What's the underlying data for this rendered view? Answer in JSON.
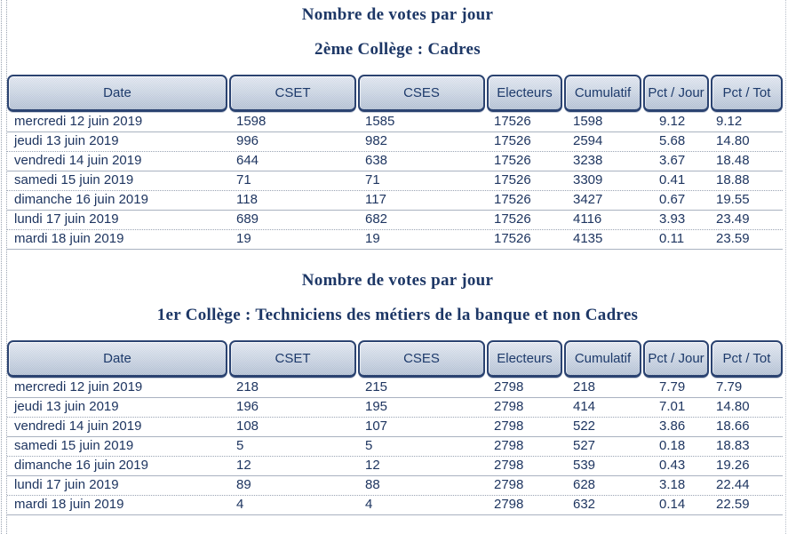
{
  "colors": {
    "navy_text": "#1d3766",
    "header_border": "#2b4371",
    "header_bg_top": "#e3e9f2",
    "header_bg_bottom": "#b4c1d4",
    "row_separator": "#a9b2c0",
    "page_bg": "#ffffff"
  },
  "sections": [
    {
      "title": "Nombre de votes par jour",
      "subtitle": "2ème Collège : Cadres",
      "columns": [
        "Date",
        "CSET",
        "CSES",
        "Electeurs",
        "Cumulatif",
        "Pct / Jour",
        "Pct / Tot"
      ],
      "rows": [
        [
          "mercredi 12 juin 2019",
          "1598",
          "1585",
          "17526",
          "1598",
          "9.12",
          "9.12"
        ],
        [
          "jeudi 13 juin 2019",
          "996",
          "982",
          "17526",
          "2594",
          "5.68",
          "14.80"
        ],
        [
          "vendredi 14 juin 2019",
          "644",
          "638",
          "17526",
          "3238",
          "3.67",
          "18.48"
        ],
        [
          "samedi 15 juin 2019",
          "71",
          "71",
          "17526",
          "3309",
          "0.41",
          "18.88"
        ],
        [
          "dimanche 16 juin 2019",
          "118",
          "117",
          "17526",
          "3427",
          "0.67",
          "19.55"
        ],
        [
          "lundi 17 juin 2019",
          "689",
          "682",
          "17526",
          "4116",
          "3.93",
          "23.49"
        ],
        [
          "mardi 18 juin 2019",
          "19",
          "19",
          "17526",
          "4135",
          "0.11",
          "23.59"
        ]
      ]
    },
    {
      "title": "Nombre de votes par jour",
      "subtitle": "1er Collège : Techniciens des métiers de la banque et non Cadres",
      "columns": [
        "Date",
        "CSET",
        "CSES",
        "Electeurs",
        "Cumulatif",
        "Pct / Jour",
        "Pct / Tot"
      ],
      "rows": [
        [
          "mercredi 12 juin 2019",
          "218",
          "215",
          "2798",
          "218",
          "7.79",
          "7.79"
        ],
        [
          "jeudi 13 juin 2019",
          "196",
          "195",
          "2798",
          "414",
          "7.01",
          "14.80"
        ],
        [
          "vendredi 14 juin 2019",
          "108",
          "107",
          "2798",
          "522",
          "3.86",
          "18.66"
        ],
        [
          "samedi 15 juin 2019",
          "5",
          "5",
          "2798",
          "527",
          "0.18",
          "18.83"
        ],
        [
          "dimanche 16 juin 2019",
          "12",
          "12",
          "2798",
          "539",
          "0.43",
          "19.26"
        ],
        [
          "lundi 17 juin 2019",
          "89",
          "88",
          "2798",
          "628",
          "3.18",
          "22.44"
        ],
        [
          "mardi 18 juin 2019",
          "4",
          "4",
          "2798",
          "632",
          "0.14",
          "22.59"
        ]
      ]
    }
  ]
}
